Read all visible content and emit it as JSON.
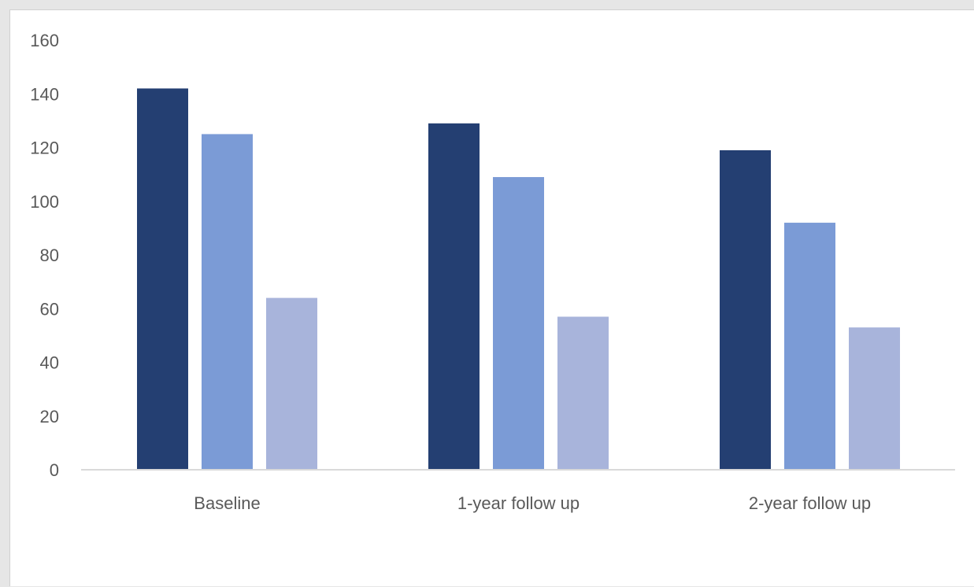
{
  "chart_data": {
    "type": "bar",
    "title": "",
    "xlabel": "",
    "ylabel": "",
    "categories": [
      "Baseline",
      "1-year follow up",
      "2-year follow up"
    ],
    "series": [
      {
        "color": "#243f72",
        "values": [
          142,
          129,
          119
        ]
      },
      {
        "color": "#7b9bd6",
        "values": [
          125,
          109,
          92
        ]
      },
      {
        "color": "#a8b4db",
        "values": [
          64,
          57,
          53
        ]
      }
    ],
    "ylim": [
      0,
      160
    ],
    "yticks": [
      "0",
      "20",
      "40",
      "60",
      "80",
      "100",
      "120",
      "140",
      "160"
    ],
    "grid": false,
    "legend": "none"
  }
}
